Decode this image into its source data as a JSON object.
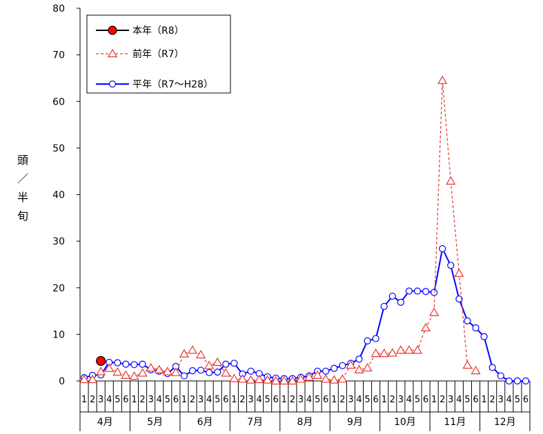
{
  "chart_data": {
    "type": "line",
    "ylabel": [
      "頭",
      "／",
      "半",
      "旬"
    ],
    "ylim": [
      0,
      80
    ],
    "yticks": [
      0,
      10,
      20,
      30,
      40,
      50,
      60,
      70,
      80
    ],
    "xtick_labels": [
      "1",
      "2",
      "3",
      "4",
      "5",
      "6",
      "1",
      "2",
      "3",
      "4",
      "5",
      "6",
      "1",
      "2",
      "3",
      "4",
      "5",
      "6",
      "1",
      "2",
      "3",
      "4",
      "5",
      "6",
      "1",
      "2",
      "3",
      "4",
      "5",
      "6",
      "1",
      "2",
      "3",
      "4",
      "5",
      "6",
      "1",
      "2",
      "3",
      "4",
      "5",
      "6",
      "1",
      "2",
      "3",
      "4",
      "5",
      "6",
      "1",
      "2",
      "3",
      "4",
      "5",
      "6"
    ],
    "months": [
      "4月",
      "5月",
      "6月",
      "7月",
      "8月",
      "9月",
      "10月",
      "11月",
      "12月"
    ],
    "grid": false,
    "legend_position": "top-left",
    "series": [
      {
        "name": "本年（R8）",
        "color": "#000000",
        "marker_fill": "#ff0000",
        "style": "solid",
        "marker": "circle",
        "values": [
          null,
          null,
          4.3
        ]
      },
      {
        "name": "前年（R7）",
        "color": "#e8362d",
        "marker_fill": "#ffffff",
        "style": "dashed",
        "marker": "triangle",
        "values": [
          0.3,
          0.3,
          2,
          2.7,
          1.9,
          1.2,
          1,
          1.7,
          2.8,
          2.4,
          2,
          1.8,
          5.8,
          6.6,
          5.6,
          3.3,
          4,
          1.7,
          0.5,
          0.4,
          0.2,
          0.3,
          0.2,
          0,
          0,
          0,
          0.4,
          0.8,
          1.2,
          0.4,
          0.2,
          0.4,
          3.4,
          2.4,
          2.8,
          5.9,
          5.9,
          6,
          6.6,
          6.6,
          6.6,
          11.4,
          14.7,
          64.5,
          42.9,
          23.1,
          3.4,
          2.2,
          null,
          null,
          null,
          null,
          null,
          null
        ]
      },
      {
        "name": "平年（R7～H28）",
        "color": "#0000ff",
        "marker_fill": "#ffffff",
        "style": "solid",
        "marker": "circle",
        "values": [
          0.7,
          1.2,
          1.3,
          4,
          3.9,
          3.6,
          3.5,
          3.6,
          2.4,
          2.1,
          1.6,
          3.1,
          1.1,
          2.2,
          2.3,
          1.8,
          1.9,
          3.6,
          3.8,
          1.5,
          2.1,
          1.6,
          0.9,
          0.6,
          0.5,
          0.5,
          0.8,
          1.1,
          2.1,
          2.1,
          2.7,
          3.3,
          3.8,
          4.7,
          8.6,
          9.1,
          16,
          18.2,
          16.9,
          19.3,
          19.3,
          19.2,
          19,
          28.4,
          24.8,
          17.6,
          12.9,
          11.4,
          9.5,
          2.9,
          1.1,
          0,
          0,
          0
        ]
      }
    ]
  }
}
